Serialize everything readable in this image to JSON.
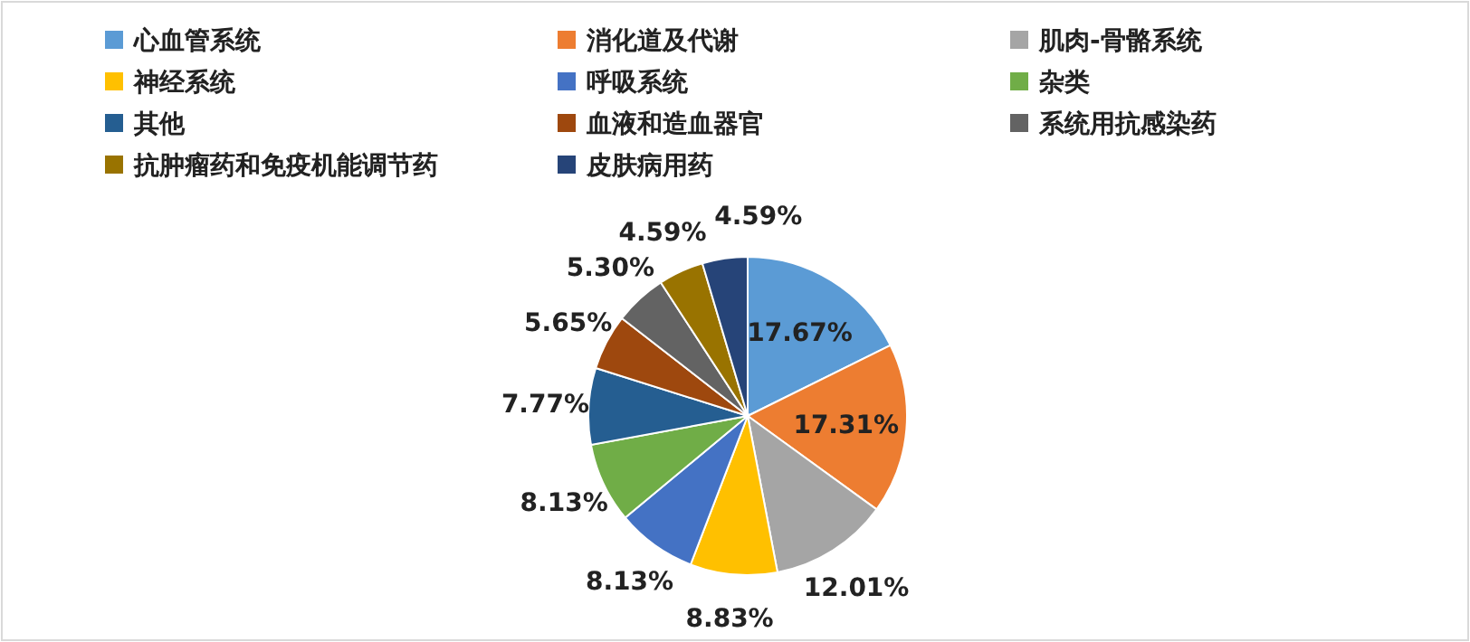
{
  "chart_data": {
    "type": "pie",
    "categories": [
      "心血管系统",
      "消化道及代谢",
      "肌肉-骨骼系统",
      "神经系统",
      "呼吸系统",
      "杂类",
      "其他",
      "血液和造血器官",
      "系统用抗感染药",
      "抗肿瘤药和免疫机能调节药",
      "皮肤病用药"
    ],
    "values": [
      17.67,
      17.31,
      12.01,
      8.83,
      8.13,
      8.13,
      7.77,
      5.65,
      5.3,
      4.59,
      4.59
    ],
    "value_labels": [
      "17.67%",
      "17.31%",
      "12.01%",
      "8.83%",
      "8.13%",
      "8.13%",
      "7.77%",
      "5.65%",
      "5.30%",
      "4.59%",
      "4.59%"
    ],
    "colors": [
      "#5b9bd5",
      "#ed7d31",
      "#a5a5a5",
      "#ffc000",
      "#4472c4",
      "#70ad47",
      "#255e91",
      "#9e480e",
      "#636363",
      "#997300",
      "#264478"
    ],
    "legend": "top"
  }
}
